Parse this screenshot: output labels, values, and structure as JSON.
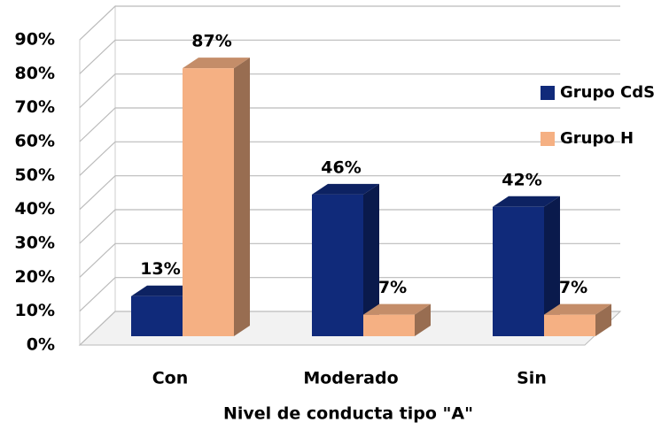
{
  "chart_data": {
    "type": "bar3d",
    "x_label": "Nivel de conducta tipo \"A\"",
    "categories": [
      "Con",
      "Moderado",
      "Sin"
    ],
    "series": [
      {
        "name": "Grupo CdS",
        "color": "#102a7a",
        "values": [
          13,
          46,
          42
        ],
        "value_labels": [
          "13%",
          "46%",
          "42%"
        ]
      },
      {
        "name": "Grupo H",
        "color": "#f5b083",
        "values": [
          87,
          7,
          7
        ],
        "value_labels": [
          "87%",
          "7%",
          "7%"
        ]
      }
    ],
    "ylim": [
      0,
      90
    ],
    "yticks": [
      {
        "value": 0,
        "label": "0%"
      },
      {
        "value": 10,
        "label": "10%"
      },
      {
        "value": 20,
        "label": "20%"
      },
      {
        "value": 30,
        "label": "30%"
      },
      {
        "value": 40,
        "label": "40%"
      },
      {
        "value": 50,
        "label": "50%"
      },
      {
        "value": 60,
        "label": "60%"
      },
      {
        "value": 70,
        "label": "70%"
      },
      {
        "value": 80,
        "label": "80%"
      },
      {
        "value": 90,
        "label": "90%"
      }
    ],
    "grid": true,
    "legend": "right"
  }
}
